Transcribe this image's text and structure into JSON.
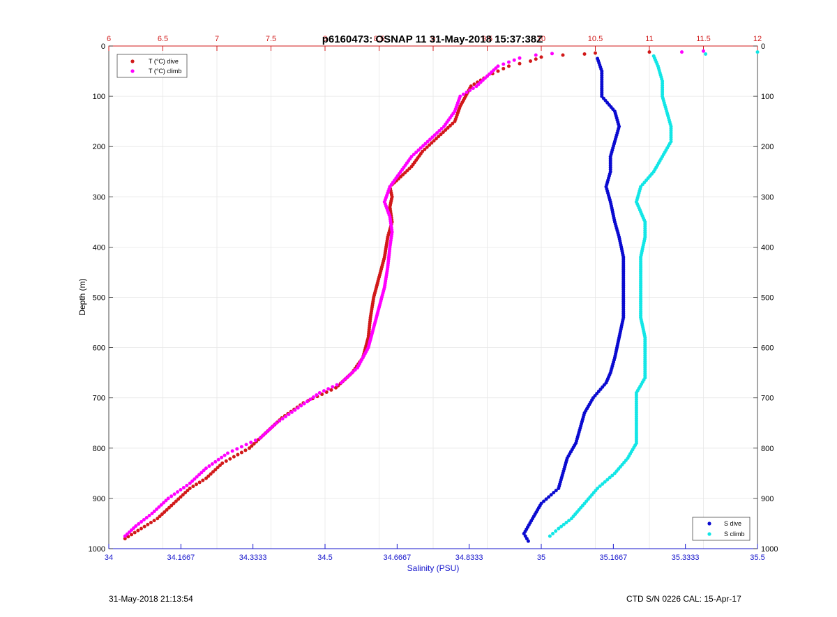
{
  "chart_data": {
    "type": "scatter",
    "title": "p6160473: OSNAP 11 31-May-2018 15:37:38Z",
    "ylabel": "Depth (m)",
    "xlabel_bottom": "Salinity (PSU)",
    "xlabel_top": "",
    "ylim": [
      1000,
      0
    ],
    "y_ticks": [
      "0",
      "100",
      "200",
      "300",
      "400",
      "500",
      "600",
      "700",
      "800",
      "900",
      "1000"
    ],
    "x_bottom": {
      "lim": [
        34,
        35.5
      ],
      "ticks": [
        34,
        34.1667,
        34.3333,
        34.5,
        34.6667,
        34.8333,
        35,
        35.1667,
        35.3333,
        35.5
      ],
      "tick_labels": [
        "34",
        "34.1667",
        "34.3333",
        "34.5",
        "34.6667",
        "34.8333",
        "35",
        "35.1667",
        "35.3333",
        "35.5"
      ]
    },
    "x_top": {
      "lim": [
        6,
        12
      ],
      "ticks": [
        6,
        6.5,
        7,
        7.5,
        8,
        8.5,
        9,
        9.5,
        10,
        10.5,
        11,
        11.5,
        12
      ],
      "tick_labels": [
        "6",
        "6.5",
        "7",
        "7.5",
        "8",
        "8.5",
        "9",
        "9.5",
        "10",
        "10.5",
        "11",
        "11.5",
        "12"
      ]
    },
    "grid": true,
    "legend_temperature": {
      "placement": "top-left",
      "entries": [
        "T (°C) dive",
        "T (°C) climb"
      ]
    },
    "legend_salinity": {
      "placement": "bottom-right",
      "entries": [
        "S dive",
        "S climb"
      ]
    },
    "colors": {
      "t_dive": "#d11919",
      "t_climb": "#ff00ff",
      "s_dive": "#0a0ad0",
      "s_climb": "#12e6e6",
      "top_axis": "#d11919",
      "bottom_axis": "#1515cc",
      "grid": "#e6e6e6"
    },
    "series": [
      {
        "name": "T (°C) dive",
        "axis": "top",
        "points": [
          [
            11.0,
            12
          ],
          [
            10.5,
            14
          ],
          [
            10.4,
            16
          ],
          [
            10.2,
            18
          ],
          [
            10.0,
            22
          ],
          [
            9.9,
            30
          ],
          [
            9.7,
            40
          ],
          [
            9.6,
            50
          ],
          [
            9.5,
            60
          ],
          [
            9.35,
            80
          ],
          [
            9.3,
            100
          ],
          [
            9.25,
            120
          ],
          [
            9.2,
            150
          ],
          [
            9.05,
            180
          ],
          [
            8.9,
            210
          ],
          [
            8.8,
            240
          ],
          [
            8.7,
            260
          ],
          [
            8.6,
            280
          ],
          [
            8.62,
            300
          ],
          [
            8.6,
            320
          ],
          [
            8.62,
            350
          ],
          [
            8.58,
            380
          ],
          [
            8.55,
            420
          ],
          [
            8.5,
            460
          ],
          [
            8.45,
            500
          ],
          [
            8.42,
            540
          ],
          [
            8.4,
            580
          ],
          [
            8.35,
            620
          ],
          [
            8.25,
            650
          ],
          [
            8.1,
            680
          ],
          [
            7.8,
            710
          ],
          [
            7.6,
            740
          ],
          [
            7.45,
            770
          ],
          [
            7.3,
            800
          ],
          [
            7.05,
            830
          ],
          [
            6.9,
            860
          ],
          [
            6.75,
            880
          ],
          [
            6.6,
            910
          ],
          [
            6.45,
            940
          ],
          [
            6.3,
            960
          ],
          [
            6.15,
            980
          ]
        ]
      },
      {
        "name": "T (°C) climb",
        "axis": "top",
        "points": [
          [
            11.5,
            10
          ],
          [
            11.3,
            12
          ],
          [
            10.1,
            15
          ],
          [
            9.95,
            18
          ],
          [
            9.8,
            24
          ],
          [
            9.6,
            40
          ],
          [
            9.5,
            60
          ],
          [
            9.4,
            80
          ],
          [
            9.25,
            100
          ],
          [
            9.2,
            130
          ],
          [
            9.1,
            160
          ],
          [
            8.95,
            190
          ],
          [
            8.8,
            220
          ],
          [
            8.7,
            250
          ],
          [
            8.6,
            280
          ],
          [
            8.55,
            310
          ],
          [
            8.6,
            340
          ],
          [
            8.62,
            370
          ],
          [
            8.6,
            400
          ],
          [
            8.58,
            440
          ],
          [
            8.55,
            480
          ],
          [
            8.5,
            520
          ],
          [
            8.45,
            560
          ],
          [
            8.4,
            600
          ],
          [
            8.3,
            640
          ],
          [
            8.15,
            670
          ],
          [
            7.95,
            690
          ],
          [
            7.75,
            720
          ],
          [
            7.55,
            750
          ],
          [
            7.4,
            780
          ],
          [
            7.1,
            810
          ],
          [
            6.9,
            840
          ],
          [
            6.75,
            870
          ],
          [
            6.55,
            900
          ],
          [
            6.4,
            930
          ],
          [
            6.25,
            955
          ],
          [
            6.15,
            975
          ]
        ]
      },
      {
        "name": "S dive",
        "axis": "bottom",
        "points": [
          [
            35.13,
            25
          ],
          [
            35.14,
            50
          ],
          [
            35.14,
            80
          ],
          [
            35.14,
            100
          ],
          [
            35.17,
            130
          ],
          [
            35.18,
            160
          ],
          [
            35.17,
            190
          ],
          [
            35.16,
            220
          ],
          [
            35.16,
            250
          ],
          [
            35.15,
            280
          ],
          [
            35.16,
            310
          ],
          [
            35.17,
            350
          ],
          [
            35.18,
            380
          ],
          [
            35.19,
            420
          ],
          [
            35.19,
            460
          ],
          [
            35.19,
            500
          ],
          [
            35.19,
            540
          ],
          [
            35.18,
            580
          ],
          [
            35.17,
            620
          ],
          [
            35.16,
            650
          ],
          [
            35.15,
            670
          ],
          [
            35.12,
            700
          ],
          [
            35.1,
            730
          ],
          [
            35.09,
            760
          ],
          [
            35.08,
            790
          ],
          [
            35.06,
            820
          ],
          [
            35.05,
            850
          ],
          [
            35.04,
            880
          ],
          [
            35.0,
            910
          ],
          [
            34.98,
            940
          ],
          [
            34.96,
            970
          ],
          [
            34.97,
            985
          ]
        ]
      },
      {
        "name": "S climb",
        "axis": "bottom",
        "points": [
          [
            35.5,
            12
          ],
          [
            35.26,
            20
          ],
          [
            35.27,
            40
          ],
          [
            35.28,
            70
          ],
          [
            35.28,
            100
          ],
          [
            35.29,
            130
          ],
          [
            35.3,
            160
          ],
          [
            35.3,
            190
          ],
          [
            35.28,
            220
          ],
          [
            35.26,
            250
          ],
          [
            35.23,
            280
          ],
          [
            35.22,
            310
          ],
          [
            35.24,
            350
          ],
          [
            35.24,
            380
          ],
          [
            35.23,
            420
          ],
          [
            35.23,
            460
          ],
          [
            35.23,
            500
          ],
          [
            35.23,
            540
          ],
          [
            35.24,
            580
          ],
          [
            35.24,
            620
          ],
          [
            35.24,
            660
          ],
          [
            35.22,
            690
          ],
          [
            35.22,
            720
          ],
          [
            35.22,
            750
          ],
          [
            35.22,
            790
          ],
          [
            35.2,
            820
          ],
          [
            35.17,
            850
          ],
          [
            35.13,
            880
          ],
          [
            35.1,
            910
          ],
          [
            35.07,
            940
          ],
          [
            35.04,
            960
          ],
          [
            35.02,
            975
          ]
        ]
      }
    ]
  },
  "footer": {
    "timestamp": "31-May-2018 21:13:54",
    "ctd_info": "CTD S/N 0226  CAL: 15-Apr-17"
  }
}
